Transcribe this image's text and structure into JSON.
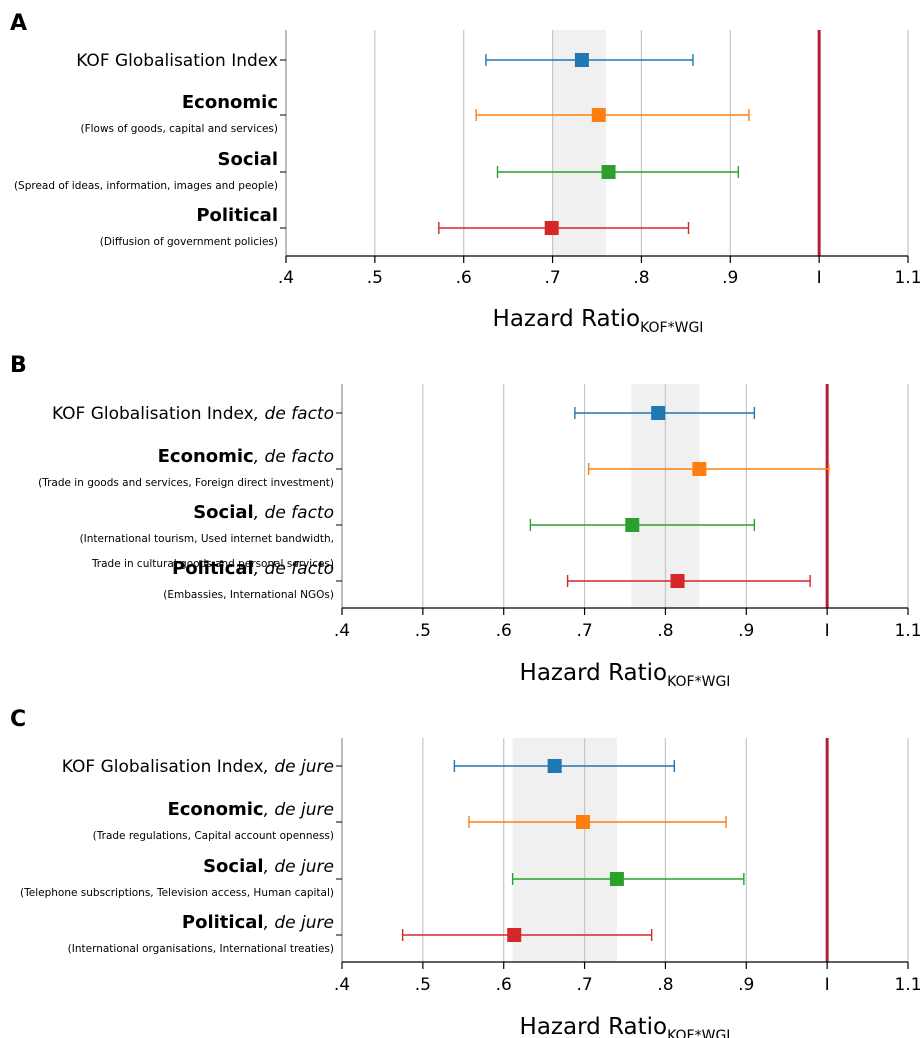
{
  "chart_data": [
    {
      "type": "forest",
      "panel_label": "A",
      "xlabel_main": "Hazard Ratio",
      "xlabel_sub": "KOF*WGI",
      "xlim": [
        0.4,
        1.1
      ],
      "xticks": [
        0.4,
        0.5,
        0.6,
        0.7,
        0.8,
        0.9,
        1.0,
        1.1
      ],
      "xtick_labels": [
        ".4",
        ".5",
        ".6",
        ".7",
        ".8",
        ".9",
        "I",
        "1.1"
      ],
      "reference_line": 1.0,
      "band": [
        0.7,
        0.76
      ],
      "rows": [
        {
          "name": "KOF Globalisation Index",
          "suffix": "",
          "sublabels": [],
          "bold": false,
          "color": "#1f77b4",
          "estimate": 0.733,
          "lower": 0.625,
          "upper": 0.858
        },
        {
          "name": "Economic",
          "suffix": "",
          "sublabels": [
            "(Flows of goods, capital and services)"
          ],
          "bold": true,
          "color": "#ff7f0e",
          "estimate": 0.752,
          "lower": 0.614,
          "upper": 0.921
        },
        {
          "name": "Social",
          "suffix": "",
          "sublabels": [
            "(Spread of ideas, information, images and people)"
          ],
          "bold": true,
          "color": "#2ca02c",
          "estimate": 0.763,
          "lower": 0.638,
          "upper": 0.909
        },
        {
          "name": "Political",
          "suffix": "",
          "sublabels": [
            "(Diffusion of government policies)"
          ],
          "bold": true,
          "color": "#d62728",
          "estimate": 0.699,
          "lower": 0.572,
          "upper": 0.853
        }
      ]
    },
    {
      "type": "forest",
      "panel_label": "B",
      "xlabel_main": "Hazard Ratio",
      "xlabel_sub": "KOF*WGI",
      "xlim": [
        0.4,
        1.1
      ],
      "xticks": [
        0.4,
        0.5,
        0.6,
        0.7,
        0.8,
        0.9,
        1.0,
        1.1
      ],
      "xtick_labels": [
        ".4",
        ".5",
        ".6",
        ".7",
        ".8",
        ".9",
        "I",
        "1.1"
      ],
      "reference_line": 1.0,
      "band": [
        0.758,
        0.842
      ],
      "rows": [
        {
          "name": "KOF Globalisation Index",
          "suffix": ", de facto",
          "sublabels": [],
          "bold": false,
          "color": "#1f77b4",
          "estimate": 0.791,
          "lower": 0.688,
          "upper": 0.91
        },
        {
          "name": "Economic",
          "suffix": ", de facto",
          "sublabels": [
            "(Trade in goods and services, Foreign direct investment)"
          ],
          "bold": true,
          "color": "#ff7f0e",
          "estimate": 0.842,
          "lower": 0.705,
          "upper": 1.002
        },
        {
          "name": "Social",
          "suffix": ", de facto",
          "sublabels": [
            "(International tourism, Used internet bandwidth,",
            "Trade in cultural goods and personal services)"
          ],
          "bold": true,
          "color": "#2ca02c",
          "estimate": 0.759,
          "lower": 0.633,
          "upper": 0.91
        },
        {
          "name": "Political",
          "suffix": ", de facto",
          "sublabels": [
            "(Embassies, International NGOs)"
          ],
          "bold": true,
          "color": "#d62728",
          "estimate": 0.815,
          "lower": 0.679,
          "upper": 0.979
        }
      ]
    },
    {
      "type": "forest",
      "panel_label": "C",
      "xlabel_main": "Hazard Ratio",
      "xlabel_sub": "KOF*WGI",
      "xlim": [
        0.4,
        1.1
      ],
      "xticks": [
        0.4,
        0.5,
        0.6,
        0.7,
        0.8,
        0.9,
        1.0,
        1.1
      ],
      "xtick_labels": [
        ".4",
        ".5",
        ".6",
        ".7",
        ".8",
        ".9",
        "I",
        "1.1"
      ],
      "reference_line": 1.0,
      "band": [
        0.611,
        0.74
      ],
      "rows": [
        {
          "name": "KOF Globalisation Index",
          "suffix": ", de jure",
          "sublabels": [],
          "bold": false,
          "color": "#1f77b4",
          "estimate": 0.663,
          "lower": 0.539,
          "upper": 0.811
        },
        {
          "name": "Economic",
          "suffix": ", de jure",
          "sublabels": [
            "(Trade regulations, Capital account openness)"
          ],
          "bold": true,
          "color": "#ff7f0e",
          "estimate": 0.698,
          "lower": 0.557,
          "upper": 0.875
        },
        {
          "name": "Social",
          "suffix": ", de jure",
          "sublabels": [
            "(Telephone subscriptions, Television access, Human capital)"
          ],
          "bold": true,
          "color": "#2ca02c",
          "estimate": 0.74,
          "lower": 0.611,
          "upper": 0.897
        },
        {
          "name": "Political",
          "suffix": ", de jure",
          "sublabels": [
            "(International organisations, International treaties)"
          ],
          "bold": true,
          "color": "#d62728",
          "estimate": 0.613,
          "lower": 0.475,
          "upper": 0.783
        }
      ]
    }
  ]
}
